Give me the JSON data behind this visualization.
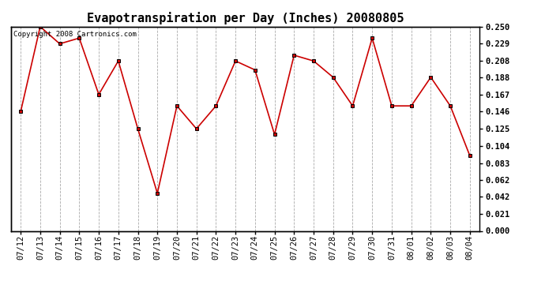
{
  "title": "Evapotranspiration per Day (Inches) 20080805",
  "copyright_text": "Copyright 2008 Cartronics.com",
  "x_labels": [
    "07/12",
    "07/13",
    "07/14",
    "07/15",
    "07/16",
    "07/17",
    "07/18",
    "07/19",
    "07/20",
    "07/21",
    "07/22",
    "07/23",
    "07/24",
    "07/25",
    "07/26",
    "07/27",
    "07/28",
    "07/29",
    "07/30",
    "07/31",
    "08/01",
    "08/02",
    "08/03",
    "08/04"
  ],
  "y_values": [
    0.146,
    0.25,
    0.229,
    0.236,
    0.167,
    0.208,
    0.125,
    0.046,
    0.153,
    0.125,
    0.153,
    0.208,
    0.197,
    0.118,
    0.215,
    0.208,
    0.188,
    0.153,
    0.236,
    0.153,
    0.153,
    0.188,
    0.153,
    0.092
  ],
  "y_ticks": [
    0.0,
    0.021,
    0.042,
    0.062,
    0.083,
    0.104,
    0.125,
    0.146,
    0.167,
    0.188,
    0.208,
    0.229,
    0.25
  ],
  "line_color": "#cc0000",
  "marker_color": "#000000",
  "background_color": "#ffffff",
  "plot_bg_color": "#ffffff",
  "grid_color": "#aaaaaa",
  "title_fontsize": 11,
  "copyright_fontsize": 6.5,
  "tick_fontsize": 7.5,
  "ylim": [
    0.0,
    0.25
  ]
}
